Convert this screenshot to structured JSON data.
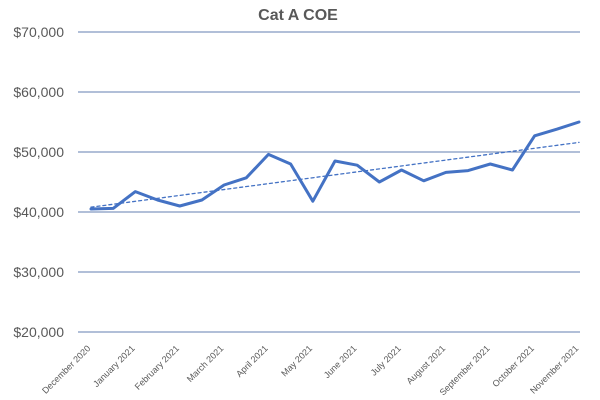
{
  "chart_data": {
    "type": "line",
    "title": "Cat A COE",
    "xlabel": "",
    "ylabel": "",
    "ylim": [
      20000,
      70000
    ],
    "yticks": [
      20000,
      30000,
      40000,
      50000,
      60000,
      70000
    ],
    "ytick_labels": [
      "$20,000",
      "$30,000",
      "$40,000",
      "$50,000",
      "$60,000",
      "$70,000"
    ],
    "x_ticks": [
      "December 2020",
      "January 2021",
      "February 2021",
      "March 2021",
      "April 2021",
      "May 2021",
      "June 2021",
      "July 2021",
      "August 2021",
      "September 2021",
      "October 2021",
      "November 2021"
    ],
    "grid": true,
    "series": [
      {
        "values": [
          40500,
          40600,
          43400,
          42000,
          41000,
          42000,
          44500,
          45700,
          49600,
          48000,
          41800,
          48500,
          47800,
          45000,
          47000,
          45200,
          46600,
          46900,
          48000,
          47000,
          52700,
          53800,
          55000
        ],
        "color": "#4472c4",
        "style": "solid"
      },
      {
        "values": [
          40800,
          51600
        ],
        "color": "#4472c4",
        "style": "dashed"
      }
    ]
  }
}
